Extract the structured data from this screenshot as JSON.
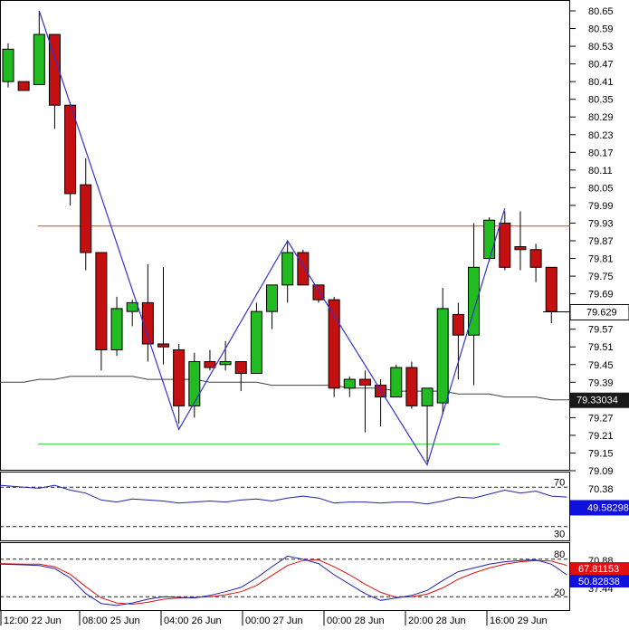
{
  "chart_data": [
    {
      "type": "candlestick",
      "title": "",
      "ylim": [
        79.09,
        80.69
      ],
      "y_ticks": [
        "80.65",
        "80.59",
        "80.53",
        "80.47",
        "80.41",
        "80.35",
        "80.29",
        "80.23",
        "80.17",
        "80.11",
        "80.05",
        "79.99",
        "79.93",
        "79.87",
        "79.81",
        "79.75",
        "79.69",
        "79.57",
        "79.51",
        "79.45",
        "79.39",
        "79.27",
        "79.21",
        "79.15",
        "79.09"
      ],
      "x_labels": [
        "12:00 22 Jun",
        "08:00 25 Jun",
        "04:00 26 Jun",
        "00:00 27 Jun",
        "00:00 28 Jun",
        "20:00 28 Jun",
        "16:00 29 Jun"
      ],
      "current_price": "79.629",
      "ma_value": "79.33034",
      "candles": [
        {
          "o": 80.41,
          "h": 80.54,
          "l": 80.39,
          "c": 80.52
        },
        {
          "o": 80.41,
          "h": 80.41,
          "l": 80.38,
          "c": 80.38
        },
        {
          "o": 80.4,
          "h": 80.65,
          "l": 80.4,
          "c": 80.57
        },
        {
          "o": 80.57,
          "h": 80.57,
          "l": 80.25,
          "c": 80.33
        },
        {
          "o": 80.33,
          "h": 80.34,
          "l": 79.99,
          "c": 80.03
        },
        {
          "o": 80.06,
          "h": 80.15,
          "l": 79.77,
          "c": 79.83
        },
        {
          "o": 79.83,
          "h": 79.83,
          "l": 79.43,
          "c": 79.5
        },
        {
          "o": 79.5,
          "h": 79.68,
          "l": 79.48,
          "c": 79.64
        },
        {
          "o": 79.63,
          "h": 79.67,
          "l": 79.58,
          "c": 79.66
        },
        {
          "o": 79.66,
          "h": 79.79,
          "l": 79.46,
          "c": 79.52
        },
        {
          "o": 79.52,
          "h": 79.78,
          "l": 79.45,
          "c": 79.51
        },
        {
          "o": 79.5,
          "h": 79.52,
          "l": 79.25,
          "c": 79.31
        },
        {
          "o": 79.31,
          "h": 79.49,
          "l": 79.27,
          "c": 79.46
        },
        {
          "o": 79.46,
          "h": 79.5,
          "l": 79.43,
          "c": 79.44
        },
        {
          "o": 79.45,
          "h": 79.53,
          "l": 79.43,
          "c": 79.46
        },
        {
          "o": 79.46,
          "h": 79.46,
          "l": 79.36,
          "c": 79.42
        },
        {
          "o": 79.42,
          "h": 79.66,
          "l": 79.42,
          "c": 79.63
        },
        {
          "o": 79.63,
          "h": 79.72,
          "l": 79.57,
          "c": 79.72
        },
        {
          "o": 79.72,
          "h": 79.87,
          "l": 79.66,
          "c": 79.83
        },
        {
          "o": 79.83,
          "h": 79.84,
          "l": 79.72,
          "c": 79.72
        },
        {
          "o": 79.72,
          "h": 79.72,
          "l": 79.66,
          "c": 79.67
        },
        {
          "o": 79.67,
          "h": 79.68,
          "l": 79.34,
          "c": 79.37
        },
        {
          "o": 79.37,
          "h": 79.41,
          "l": 79.34,
          "c": 79.4
        },
        {
          "o": 79.4,
          "h": 79.43,
          "l": 79.22,
          "c": 79.38
        },
        {
          "o": 79.38,
          "h": 79.4,
          "l": 79.24,
          "c": 79.34
        },
        {
          "o": 79.34,
          "h": 79.45,
          "l": 79.34,
          "c": 79.44
        },
        {
          "o": 79.44,
          "h": 79.46,
          "l": 79.3,
          "c": 79.31
        },
        {
          "o": 79.31,
          "h": 79.37,
          "l": 79.12,
          "c": 79.37
        },
        {
          "o": 79.32,
          "h": 79.71,
          "l": 79.28,
          "c": 79.64
        },
        {
          "o": 79.62,
          "h": 79.66,
          "l": 79.4,
          "c": 79.55
        },
        {
          "o": 79.55,
          "h": 79.93,
          "l": 79.38,
          "c": 79.78
        },
        {
          "o": 79.81,
          "h": 79.95,
          "l": 79.8,
          "c": 79.94
        },
        {
          "o": 79.93,
          "h": 79.97,
          "l": 79.77,
          "c": 79.78
        },
        {
          "o": 79.85,
          "h": 79.97,
          "l": 79.77,
          "c": 79.84
        },
        {
          "o": 79.84,
          "h": 79.86,
          "l": 79.73,
          "c": 79.78
        },
        {
          "o": 79.78,
          "h": 79.78,
          "l": 79.59,
          "c": 79.63
        }
      ],
      "zigzag": [
        {
          "i": 2,
          "v": 80.65
        },
        {
          "i": 11,
          "v": 79.23
        },
        {
          "i": 18,
          "v": 79.87
        },
        {
          "i": 27,
          "v": 79.11
        },
        {
          "i": 32,
          "v": 79.98
        }
      ],
      "resistance_level": 79.92,
      "support_level": 79.18,
      "moving_average": [
        79.39,
        79.39,
        79.4,
        79.4,
        79.41,
        79.41,
        79.41,
        79.41,
        79.41,
        79.4,
        79.4,
        79.4,
        79.4,
        79.39,
        79.39,
        79.39,
        79.39,
        79.38,
        79.38,
        79.38,
        79.38,
        79.38,
        79.37,
        79.37,
        79.37,
        79.36,
        79.36,
        79.36,
        79.36,
        79.35,
        79.35,
        79.35,
        79.34,
        79.34,
        79.34,
        79.33,
        79.33
      ],
      "colors": {
        "bull": "#22bb22",
        "bear": "#c41010",
        "zigzag": "#3333cc",
        "resistance": "#e03c20",
        "support": "#22cc22",
        "ma": "#404040"
      }
    },
    {
      "type": "line",
      "name": "rsi",
      "levels": [
        "70",
        "30"
      ],
      "axis_label": "70.38",
      "ylim": [
        15,
        85
      ],
      "current_value": "49.58298",
      "values": [
        72,
        70,
        69,
        72,
        67,
        64,
        57,
        55,
        58,
        57,
        56,
        54,
        55,
        56,
        55,
        57,
        58,
        56,
        59,
        61,
        59,
        54,
        55,
        55,
        54,
        55,
        55,
        53,
        56,
        60,
        59,
        63,
        67,
        64,
        66,
        61,
        60
      ],
      "color": "#2222aa"
    },
    {
      "type": "line",
      "name": "stochastic",
      "levels": [
        "80",
        "20"
      ],
      "axis_labels": [
        "70.88",
        "37.44"
      ],
      "ylim": [
        0,
        100
      ],
      "main_value": "67.81153",
      "signal_value": "50.82838",
      "main": [
        72,
        71,
        70,
        65,
        50,
        25,
        9,
        6,
        10,
        16,
        20,
        19,
        18,
        22,
        28,
        35,
        50,
        68,
        85,
        80,
        73,
        55,
        40,
        25,
        14,
        18,
        22,
        30,
        46,
        60,
        66,
        72,
        76,
        78,
        79,
        72,
        55
      ],
      "signal": [
        73,
        72,
        72,
        68,
        56,
        36,
        18,
        10,
        8,
        11,
        16,
        18,
        19,
        20,
        23,
        28,
        38,
        54,
        70,
        78,
        79,
        68,
        55,
        40,
        27,
        19,
        20,
        24,
        34,
        48,
        58,
        66,
        72,
        76,
        78,
        77,
        70
      ],
      "colors": {
        "main": "#2222aa",
        "signal": "#dd1111"
      }
    }
  ],
  "colors": {
    "price_box": "#1a1a1a",
    "value_box_blue": "#1010dd",
    "value_box_red": "#e01010",
    "grid_dash": "#222222"
  }
}
